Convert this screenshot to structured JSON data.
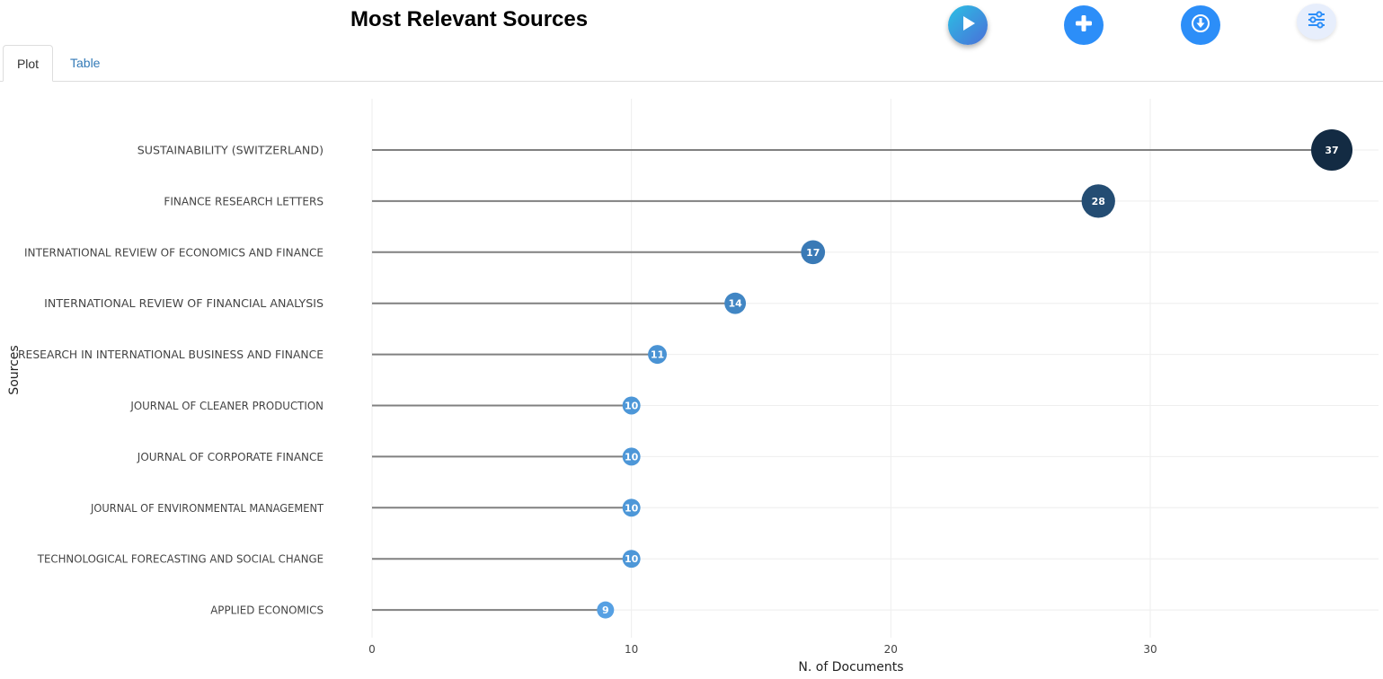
{
  "header": {
    "title": "Most Relevant Sources"
  },
  "toolbar": {
    "buttons": [
      {
        "icon": "play-icon"
      },
      {
        "icon": "plus-icon"
      },
      {
        "icon": "download-icon"
      },
      {
        "icon": "sliders-icon"
      }
    ]
  },
  "tabs": [
    {
      "label": "Plot",
      "active": true
    },
    {
      "label": "Table",
      "active": false
    }
  ],
  "colors": {
    "stem": "#808080",
    "grid": "#eeeeee",
    "tab_link": "#337ab7",
    "button_blue": "#2c8ef8"
  },
  "chart_data": {
    "type": "lollipop",
    "xlabel": "N. of Documents",
    "ylabel": "Sources",
    "xlim": [
      0,
      38.8
    ],
    "xticks": [
      0,
      10,
      20,
      30
    ],
    "grid": true,
    "categories": [
      "SUSTAINABILITY (SWITZERLAND)",
      "FINANCE RESEARCH LETTERS",
      "INTERNATIONAL REVIEW OF ECONOMICS AND FINANCE",
      "INTERNATIONAL REVIEW OF FINANCIAL ANALYSIS",
      "RESEARCH IN INTERNATIONAL BUSINESS AND FINANCE",
      "JOURNAL OF CLEANER PRODUCTION",
      "JOURNAL OF CORPORATE FINANCE",
      "JOURNAL OF ENVIRONMENTAL MANAGEMENT",
      "TECHNOLOGICAL FORECASTING AND SOCIAL CHANGE",
      "APPLIED ECONOMICS"
    ],
    "values": [
      37,
      28,
      17,
      14,
      11,
      10,
      10,
      10,
      10,
      9
    ],
    "point_colors": [
      "#132b43",
      "#244d73",
      "#3a7ab6",
      "#4186c4",
      "#4a93d4",
      "#4d97d8",
      "#4d97d8",
      "#4d97d8",
      "#4d97d8",
      "#56a0e3"
    ]
  }
}
